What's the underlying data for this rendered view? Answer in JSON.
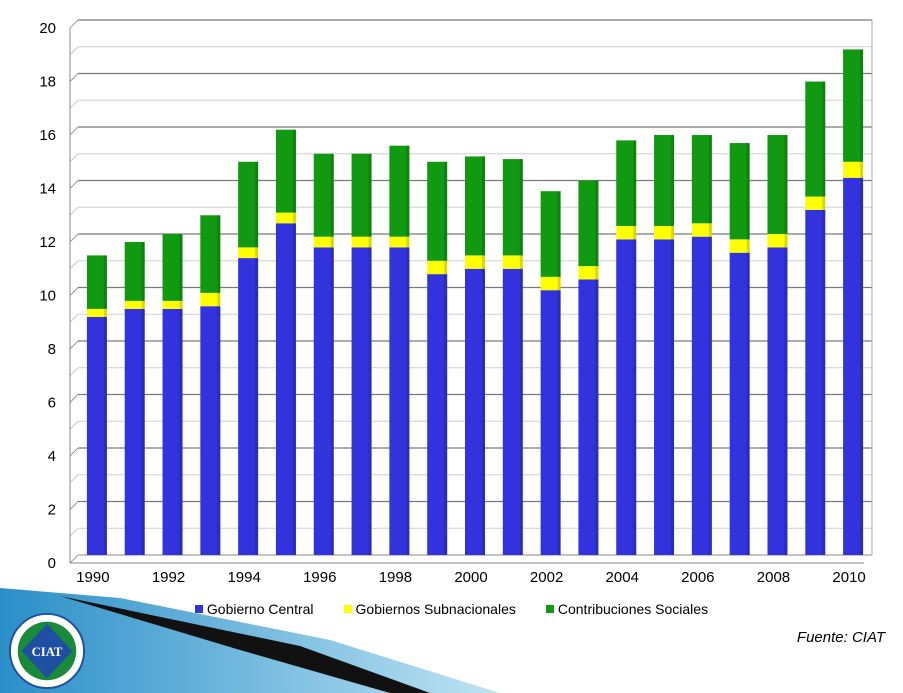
{
  "chart_data": {
    "type": "bar",
    "stacked": true,
    "categories": [
      "1990",
      "1991",
      "1992",
      "1993",
      "1994",
      "1995",
      "1996",
      "1997",
      "1998",
      "1999",
      "2000",
      "2001",
      "2002",
      "2003",
      "2004",
      "2005",
      "2006",
      "2007",
      "2008",
      "2009",
      "2010"
    ],
    "x_tick_labels": [
      "1990",
      "1992",
      "1994",
      "1996",
      "1998",
      "2000",
      "2002",
      "2004",
      "2006",
      "2008",
      "2010"
    ],
    "series": [
      {
        "name": "Gobierno Central",
        "color": "#3333dd",
        "values": [
          8.9,
          9.2,
          9.2,
          9.3,
          11.1,
          12.4,
          11.5,
          11.5,
          11.5,
          10.5,
          10.7,
          10.7,
          9.9,
          10.3,
          11.8,
          11.8,
          11.9,
          11.3,
          11.5,
          12.9,
          14.1
        ]
      },
      {
        "name": "Gobiernos Subnacionales",
        "color": "#ffff00",
        "values": [
          0.3,
          0.3,
          0.3,
          0.5,
          0.4,
          0.4,
          0.4,
          0.4,
          0.4,
          0.5,
          0.5,
          0.5,
          0.5,
          0.5,
          0.5,
          0.5,
          0.5,
          0.5,
          0.5,
          0.5,
          0.6
        ]
      },
      {
        "name": "Contribuciones Sociales",
        "color": "#119911",
        "values": [
          2.0,
          2.2,
          2.5,
          2.9,
          3.2,
          3.1,
          3.1,
          3.1,
          3.4,
          3.7,
          3.7,
          3.6,
          3.2,
          3.2,
          3.2,
          3.4,
          3.3,
          3.6,
          3.7,
          4.3,
          4.2
        ]
      }
    ],
    "y_ticks": [
      "0",
      "2",
      "4",
      "6",
      "8",
      "10",
      "12",
      "14",
      "16",
      "18",
      "20"
    ],
    "ylim": [
      0,
      20
    ],
    "grid": true,
    "legend_position": "bottom",
    "title": "",
    "xlabel": "",
    "ylabel": ""
  },
  "source_text": "Fuente: CIAT",
  "logo": {
    "text": "CIAT",
    "colors": [
      "#1a8a3a",
      "#1e4fa0"
    ]
  }
}
